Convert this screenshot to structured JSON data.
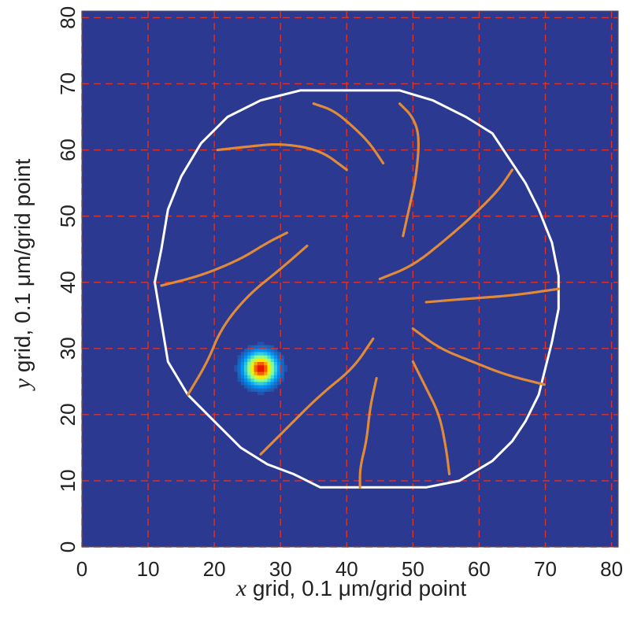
{
  "chart_data": {
    "type": "heatmap",
    "title": "",
    "xlabel": {
      "var": "x",
      "text": " grid, 0.1 μm/grid point"
    },
    "ylabel": {
      "var": "y",
      "text": " grid, 0.1 μm/grid point"
    },
    "xlim": [
      0,
      81
    ],
    "ylim": [
      0,
      81
    ],
    "xticks": [
      0,
      10,
      20,
      30,
      40,
      50,
      60,
      70,
      80
    ],
    "yticks": [
      0,
      10,
      20,
      30,
      40,
      50,
      60,
      70,
      80
    ],
    "grid": true,
    "colors": {
      "background": "#2b3990",
      "grid": "#d9342b",
      "boundary": "#ffffff",
      "tracks": "#e08a3a",
      "hot_spot": [
        "#ff0000",
        "#ffee00",
        "#7fffa0",
        "#00c8ff"
      ]
    },
    "boundary": [
      [
        41,
        69
      ],
      [
        48,
        69
      ],
      [
        53,
        67.5
      ],
      [
        58,
        65
      ],
      [
        62,
        62.5
      ],
      [
        65,
        58
      ],
      [
        67,
        55
      ],
      [
        69,
        51
      ],
      [
        71,
        46
      ],
      [
        72,
        41
      ],
      [
        72,
        36
      ],
      [
        71,
        31
      ],
      [
        70,
        27
      ],
      [
        69,
        23
      ],
      [
        67,
        19
      ],
      [
        65,
        16
      ],
      [
        62,
        13
      ],
      [
        57,
        10
      ],
      [
        52,
        9
      ],
      [
        41,
        9
      ],
      [
        36,
        9
      ],
      [
        32,
        11
      ],
      [
        28,
        12.5
      ],
      [
        24,
        15
      ],
      [
        20,
        19
      ],
      [
        16,
        23
      ],
      [
        13,
        28
      ],
      [
        12,
        34
      ],
      [
        11,
        40
      ],
      [
        12,
        45
      ],
      [
        13,
        51
      ],
      [
        15,
        56
      ],
      [
        18,
        61
      ],
      [
        22,
        65
      ],
      [
        27,
        67.5
      ],
      [
        33,
        69
      ],
      [
        41,
        69
      ]
    ],
    "tracks": [
      {
        "points": [
          [
            35,
            67
          ],
          [
            38,
            66
          ],
          [
            41,
            63.5
          ],
          [
            43.5,
            61
          ],
          [
            45.5,
            58
          ]
        ]
      },
      {
        "points": [
          [
            48,
            67
          ],
          [
            50,
            65
          ],
          [
            51,
            62
          ],
          [
            50.5,
            56
          ],
          [
            49.5,
            51.5
          ],
          [
            48.5,
            47
          ]
        ]
      },
      {
        "points": [
          [
            20.5,
            60
          ],
          [
            25,
            60.5
          ],
          [
            30,
            61
          ],
          [
            36,
            60
          ],
          [
            40,
            57
          ]
        ]
      },
      {
        "points": [
          [
            65,
            57
          ],
          [
            63,
            54
          ],
          [
            59,
            50
          ],
          [
            55,
            46.5
          ],
          [
            50,
            42.5
          ],
          [
            45,
            40.5
          ]
        ]
      },
      {
        "points": [
          [
            12,
            39.5
          ],
          [
            18,
            41
          ],
          [
            24,
            43.5
          ],
          [
            28,
            46
          ],
          [
            31,
            47.5
          ]
        ]
      },
      {
        "points": [
          [
            16,
            23
          ],
          [
            19,
            28
          ],
          [
            21,
            33
          ],
          [
            25,
            38
          ],
          [
            30,
            42
          ],
          [
            34,
            45.5
          ]
        ]
      },
      {
        "points": [
          [
            52,
            37
          ],
          [
            58,
            37.5
          ],
          [
            65,
            38
          ],
          [
            72,
            39
          ]
        ]
      },
      {
        "points": [
          [
            50,
            33
          ],
          [
            54,
            30
          ],
          [
            59,
            28
          ],
          [
            64,
            26
          ],
          [
            70,
            24.5
          ]
        ]
      },
      {
        "points": [
          [
            27,
            14
          ],
          [
            31,
            18
          ],
          [
            36,
            23
          ],
          [
            41,
            27
          ],
          [
            44,
            31.5
          ]
        ]
      },
      {
        "points": [
          [
            50,
            28
          ],
          [
            52,
            24
          ],
          [
            54,
            20
          ],
          [
            55,
            15
          ],
          [
            55.5,
            11
          ]
        ]
      },
      {
        "points": [
          [
            44.5,
            25.5
          ],
          [
            43.5,
            21
          ],
          [
            43,
            16
          ],
          [
            42,
            12
          ],
          [
            42,
            9
          ]
        ]
      }
    ],
    "hot_spot": {
      "x": 27,
      "y": 27,
      "radius": 4
    }
  }
}
